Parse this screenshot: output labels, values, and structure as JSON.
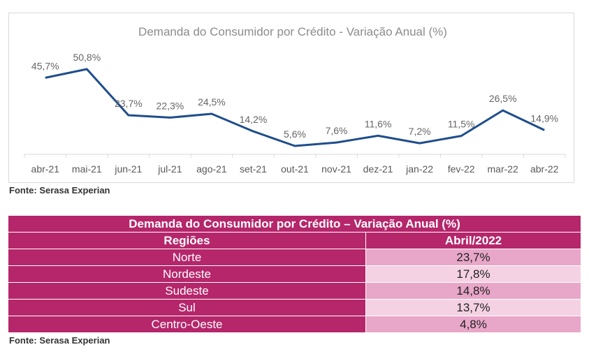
{
  "chart_data": {
    "type": "line",
    "title": "Demanda do Consumidor por Crédito - Variação Anual (%)",
    "categories": [
      "abr-21",
      "mai-21",
      "jun-21",
      "jul-21",
      "ago-21",
      "set-21",
      "out-21",
      "nov-21",
      "dez-21",
      "jan-22",
      "fev-22",
      "mar-22",
      "abr-22"
    ],
    "values": [
      45.7,
      50.8,
      23.7,
      22.3,
      24.5,
      14.2,
      5.6,
      7.6,
      11.6,
      7.2,
      11.5,
      26.5,
      14.9
    ],
    "labels": [
      "45,7%",
      "50,8%",
      "23,7%",
      "22,3%",
      "24,5%",
      "14,2%",
      "5,6%",
      "7,6%",
      "11,6%",
      "7,2%",
      "11,5%",
      "26,5%",
      "14,9%"
    ],
    "line_color": "#1f4e8c",
    "grid": false,
    "legend": "none"
  },
  "source_1": "Fonte: Serasa Experian",
  "table": {
    "title": "Demanda do Consumidor por Crédito – Variação Anual (%)",
    "col_region": "Regiões",
    "col_value": "Abril/2022",
    "rows": [
      {
        "region": "Norte",
        "value": "23,7%"
      },
      {
        "region": "Nordeste",
        "value": "17,8%"
      },
      {
        "region": "Sudeste",
        "value": "14,8%"
      },
      {
        "region": "Sul",
        "value": "13,7%"
      },
      {
        "region": "Centro-Oeste",
        "value": "4,8%"
      }
    ],
    "header_color": "#b5266b",
    "row_colors": [
      "#e8a6c8",
      "#f4d2e3"
    ]
  },
  "source_2": "Fonte: Serasa Experian"
}
